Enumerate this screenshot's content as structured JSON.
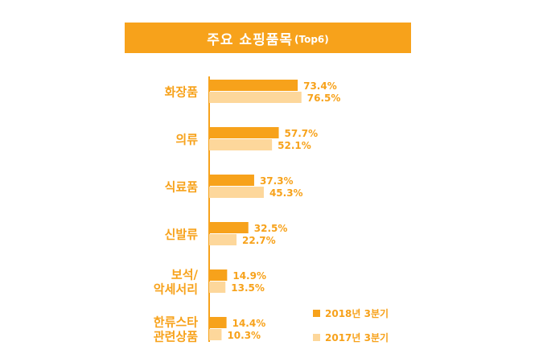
{
  "title": {
    "main": "주요 쇼핑품목",
    "sub": "(Top6)"
  },
  "colors": {
    "accent": "#f7a21b",
    "series_2018": "#f7a21b",
    "series_2017": "#fdd79b",
    "label_text": "#f7a21b",
    "axis": "#f7a21b"
  },
  "chart_data": {
    "type": "bar",
    "orientation": "horizontal",
    "title": "주요 쇼핑품목(Top6)",
    "categories": [
      [
        "화장품"
      ],
      [
        "의류"
      ],
      [
        "식료품"
      ],
      [
        "신발류"
      ],
      [
        "보석/",
        "악세서리"
      ],
      [
        "한류스타",
        "관련상품"
      ]
    ],
    "series": [
      {
        "name": "2018년 3분기",
        "values": [
          73.4,
          57.7,
          37.3,
          32.5,
          14.9,
          14.4
        ],
        "labels": [
          "73.4%",
          "57.7%",
          "37.3%",
          "32.5%",
          "14.9%",
          "14.4%"
        ]
      },
      {
        "name": "2017년 3분기",
        "values": [
          76.5,
          52.1,
          45.3,
          22.7,
          13.5,
          10.3
        ],
        "labels": [
          "76.5%",
          "52.1%",
          "45.3%",
          "22.7%",
          "13.5%",
          "10.3%"
        ]
      }
    ],
    "xlim": [
      0,
      100
    ],
    "grid": false,
    "legend_position": "bottom-right",
    "unit": "%"
  }
}
